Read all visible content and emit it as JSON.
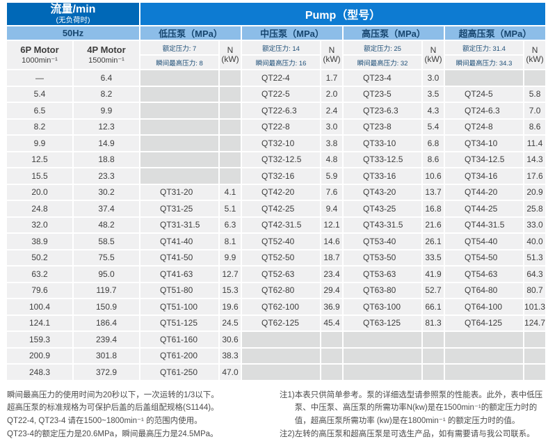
{
  "colors": {
    "flow_header_blue": "#0068b7",
    "pump_header_blue": "#0d7bd2",
    "subheader_light_blue": "#8cbde8",
    "subheader_text_navy": "#17466f",
    "filled_cell_gray": "#f0f0f1",
    "empty_cell_gray": "#dcdddd",
    "body_text": "#3c3c3c"
  },
  "header": {
    "flow_title": "流量/min",
    "flow_subtitle": "(无负荷时)",
    "pump_title": "Pump（型号）",
    "freq": "50Hz",
    "power_line1": "N",
    "power_line2": "(kW)",
    "motors": [
      {
        "line1": "6P Motor",
        "line2": "1000min⁻¹"
      },
      {
        "line1": "4P Motor",
        "line2": "1500min⁻¹"
      }
    ],
    "sections": [
      {
        "name": "低压泵（MPa）",
        "rated": "额定压力: 7",
        "max": "瞬间最高压力: 8"
      },
      {
        "name": "中压泵（MPa）",
        "rated": "额定压力: 14",
        "max": "瞬间最高压力: 16"
      },
      {
        "name": "高压泵（MPa）",
        "rated": "额定压力: 25",
        "max": "瞬间最高压力: 32"
      },
      {
        "name": "超高压泵（MPa）",
        "rated": "额定压力: 31.4",
        "max": "瞬间最高压力: 34.3"
      }
    ]
  },
  "table": {
    "rows": [
      [
        "—",
        "6.4",
        "",
        "",
        "QT22-4",
        "1.7",
        "QT23-4",
        "3.0",
        "",
        ""
      ],
      [
        "5.4",
        "8.2",
        "",
        "",
        "QT22-5",
        "2.0",
        "QT23-5",
        "3.5",
        "QT24-5",
        "5.8"
      ],
      [
        "6.5",
        "9.9",
        "",
        "",
        "QT22-6.3",
        "2.4",
        "QT23-6.3",
        "4.3",
        "QT24-6.3",
        "7.0"
      ],
      [
        "8.2",
        "12.3",
        "",
        "",
        "QT22-8",
        "3.0",
        "QT23-8",
        "5.4",
        "QT24-8",
        "8.6"
      ],
      [
        "9.9",
        "14.9",
        "",
        "",
        "QT32-10",
        "3.8",
        "QT33-10",
        "6.8",
        "QT34-10",
        "11.4"
      ],
      [
        "12.5",
        "18.8",
        "",
        "",
        "QT32-12.5",
        "4.8",
        "QT33-12.5",
        "8.6",
        "QT34-12.5",
        "14.3"
      ],
      [
        "15.5",
        "23.3",
        "",
        "",
        "QT32-16",
        "5.9",
        "QT33-16",
        "10.6",
        "QT34-16",
        "17.6"
      ],
      [
        "20.0",
        "30.2",
        "QT31-20",
        "4.1",
        "QT42-20",
        "7.6",
        "QT43-20",
        "13.7",
        "QT44-20",
        "20.9"
      ],
      [
        "24.8",
        "37.4",
        "QT31-25",
        "5.1",
        "QT42-25",
        "9.4",
        "QT43-25",
        "16.8",
        "QT44-25",
        "25.8"
      ],
      [
        "32.0",
        "48.2",
        "QT31-31.5",
        "6.3",
        "QT42-31.5",
        "12.1",
        "QT43-31.5",
        "21.6",
        "QT44-31.5",
        "33.0"
      ],
      [
        "38.9",
        "58.5",
        "QT41-40",
        "8.1",
        "QT52-40",
        "14.6",
        "QT53-40",
        "26.1",
        "QT54-40",
        "40.0"
      ],
      [
        "50.2",
        "75.5",
        "QT41-50",
        "9.9",
        "QT52-50",
        "18.7",
        "QT53-50",
        "33.5",
        "QT54-50",
        "51.3"
      ],
      [
        "63.2",
        "95.0",
        "QT41-63",
        "12.7",
        "QT52-63",
        "23.4",
        "QT53-63",
        "41.9",
        "QT54-63",
        "64.3"
      ],
      [
        "79.6",
        "119.7",
        "QT51-80",
        "15.3",
        "QT62-80",
        "29.4",
        "QT63-80",
        "52.7",
        "QT64-80",
        "80.7"
      ],
      [
        "100.4",
        "150.9",
        "QT51-100",
        "19.6",
        "QT62-100",
        "36.9",
        "QT63-100",
        "66.1",
        "QT64-100",
        "101.3"
      ],
      [
        "124.1",
        "186.4",
        "QT51-125",
        "24.5",
        "QT62-125",
        "45.4",
        "QT63-125",
        "81.3",
        "QT64-125",
        "124.7"
      ],
      [
        "159.3",
        "239.4",
        "QT61-160",
        "30.6",
        "",
        "",
        "",
        "",
        "",
        ""
      ],
      [
        "200.9",
        "301.8",
        "QT61-200",
        "38.3",
        "",
        "",
        "",
        "",
        "",
        ""
      ],
      [
        "248.3",
        "372.9",
        "QT61-250",
        "47.0",
        "",
        "",
        "",
        "",
        "",
        ""
      ]
    ]
  },
  "notes_left": [
    "瞬间最高压力的使用时间为20秒以下，一次运转的1/3以下。",
    "超高压泵的标准规格为可保护后盖的后盖组配规格(S1144)。",
    "QT22-4, QT23-4 请在1500~1800min⁻¹ 的范围内使用。",
    "QT23-4的额定压力是20.6MPa，瞬间最高压力是24.5MPa。"
  ],
  "notes_right": [
    {
      "label": "注1)",
      "text": "本表只供简单参考。泵的详细选型请参照泵的性能表。此外，表中低压泵、中压泵、高压泵的所需功率N(kw)是在1500min⁻¹的额定压力时的值，超高压泵所需功率 (kw)是在1800min⁻¹ 的额定压力时的值。"
    },
    {
      "label": "注2)",
      "text": "左转的高压泵和超高压泵是可选生产品，如有需要请与我公司联系。"
    }
  ]
}
